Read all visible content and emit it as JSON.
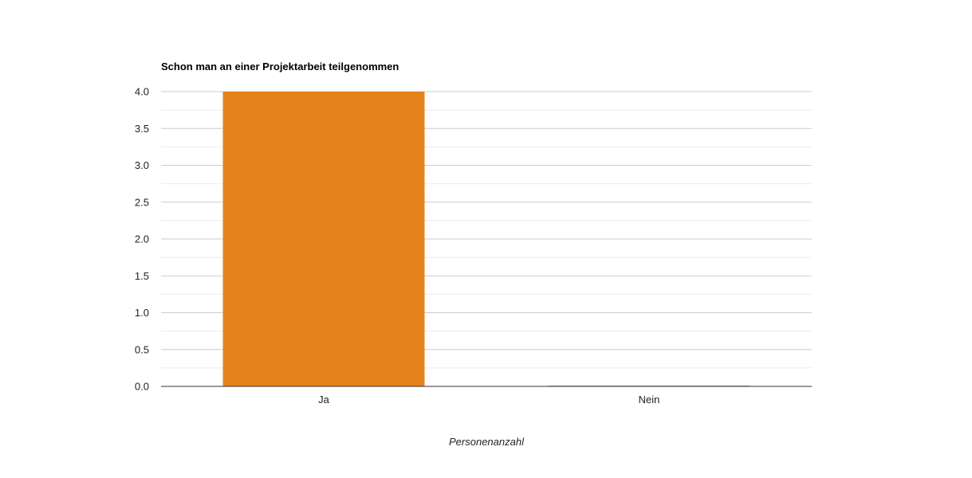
{
  "chart_data": {
    "type": "bar",
    "title": "Schon man an einer Projektarbeit teilgenommen",
    "xlabel": "Personenanzahl",
    "ylabel": "",
    "categories": [
      "Ja",
      "Nein"
    ],
    "values": [
      4,
      0
    ],
    "ylim": [
      0,
      4
    ],
    "yticks": [
      "0.0",
      "0.5",
      "1.0",
      "1.5",
      "2.0",
      "2.5",
      "3.0",
      "3.5",
      "4.0"
    ],
    "grid": true,
    "legend": "none",
    "colors": {
      "bar": "#e6821b",
      "major_grid": "#cccccc",
      "minor_grid": "#ebebeb",
      "baseline": "#333333"
    }
  }
}
